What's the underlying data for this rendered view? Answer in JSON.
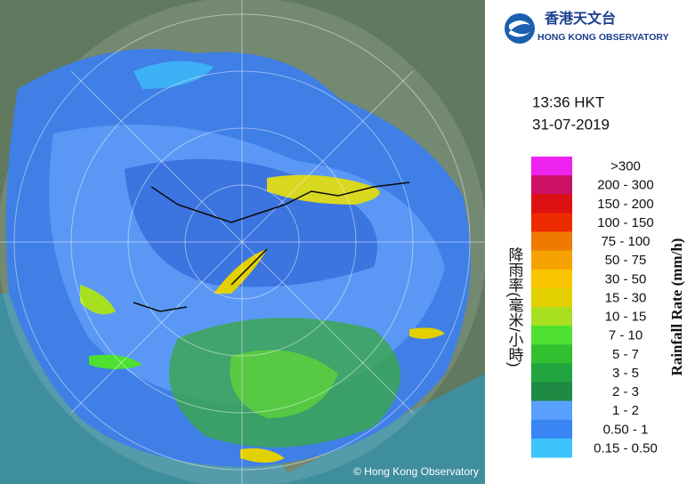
{
  "header": {
    "logo_chinese": "香港天文台",
    "logo_english": "HONG KONG OBSERVATORY"
  },
  "timestamp": {
    "time": "13:36 HKT",
    "date": "31-07-2019"
  },
  "legend": {
    "title_chinese": "降雨率(毫米/小時)",
    "title_english": "Rainfall Rate (mm/h)",
    "items": [
      {
        "label": ">300",
        "color": "#ee22ee"
      },
      {
        "label": "200 - 300",
        "color": "#cc1166"
      },
      {
        "label": "150 - 200",
        "color": "#dd1111"
      },
      {
        "label": "100 - 150",
        "color": "#ee2a00"
      },
      {
        "label": "75 - 100",
        "color": "#ee7a00"
      },
      {
        "label": "50 - 75",
        "color": "#f5a200"
      },
      {
        "label": "30 - 50",
        "color": "#f8c400"
      },
      {
        "label": "15 - 30",
        "color": "#e2d000"
      },
      {
        "label": "10 - 15",
        "color": "#a8e020"
      },
      {
        "label": "7 - 10",
        "color": "#4ee030"
      },
      {
        "label": "5 - 7",
        "color": "#30c030"
      },
      {
        "label": "3 - 5",
        "color": "#22a440"
      },
      {
        "label": "2 - 3",
        "color": "#1f8a44"
      },
      {
        "label": "1 - 2",
        "color": "#5aa0ff"
      },
      {
        "label": "0.50 - 1",
        "color": "#3a86f4"
      },
      {
        "label": "0.15 - 0.50",
        "color": "#3ec4fb"
      }
    ]
  },
  "map": {
    "copyright": "© Hong Kong Observatory"
  }
}
